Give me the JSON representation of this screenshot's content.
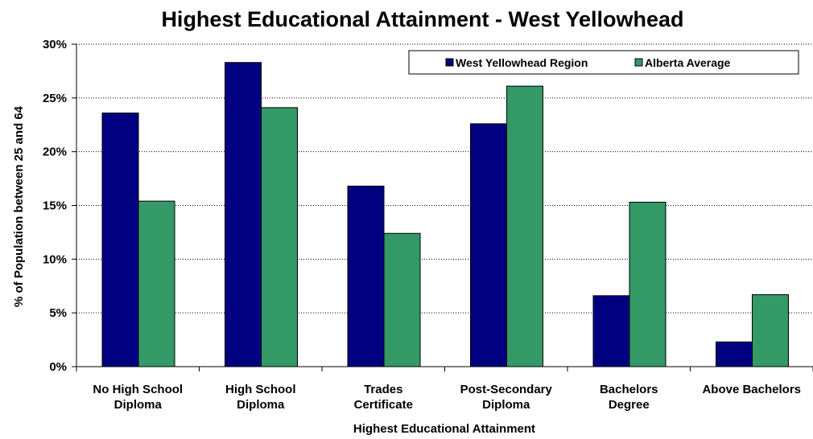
{
  "chart_data": {
    "type": "bar",
    "title": "Highest Educational Attainment - West Yellowhead",
    "xlabel": "Highest Educational Attainment",
    "ylabel": "% of Population between 25 and 64",
    "ylim": [
      0,
      30
    ],
    "yticks": [
      0,
      5,
      10,
      15,
      20,
      25,
      30
    ],
    "ytick_labels": [
      "0%",
      "5%",
      "10%",
      "15%",
      "20%",
      "25%",
      "30%"
    ],
    "grid": true,
    "legend_position": "top-right",
    "categories": [
      [
        "No High School",
        "Diploma"
      ],
      [
        "High School",
        "Diploma"
      ],
      [
        "Trades",
        "Certificate"
      ],
      [
        "Post-Secondary",
        "Diploma"
      ],
      [
        "Bachelors",
        "Degree"
      ],
      [
        "Above Bachelors"
      ]
    ],
    "series": [
      {
        "name": "West Yellowhead Region",
        "color": "#000080",
        "values": [
          23.6,
          28.3,
          16.8,
          22.6,
          6.6,
          2.3
        ]
      },
      {
        "name": "Alberta Average",
        "color": "#339966",
        "values": [
          15.4,
          24.1,
          12.4,
          26.1,
          15.3,
          6.7
        ]
      }
    ]
  }
}
